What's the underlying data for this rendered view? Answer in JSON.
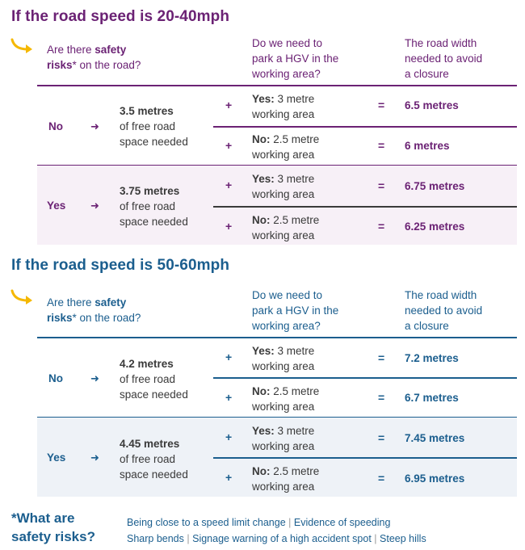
{
  "colors": {
    "purple": "#6b2274",
    "blue": "#1b5e8e",
    "yellow_arrow": "#f5b800",
    "purple_shade": "#f7f0f7",
    "blue_shade": "#eef2f7"
  },
  "section1": {
    "title": "If the road speed is 20-40mph",
    "header": {
      "q1_a": "Are there ",
      "q1_b": "safety",
      "q1_c": "risks",
      "q1_d": "* on the road?",
      "q2_l1": "Do we need to",
      "q2_l2": "park a HGV in the",
      "q2_l3": "working area?",
      "q3_l1": "The road width",
      "q3_l2": "needed to avoid",
      "q3_l3": "a closure"
    },
    "groups": [
      {
        "answer": "No",
        "arrow": "➜",
        "space_bold": "3.5 metres",
        "space_l2": "of free road",
        "space_l3": "space needed",
        "rows": [
          {
            "plus": "+",
            "hgv_bold": "Yes:",
            "hgv_rest": " 3 metre",
            "hgv_l2": "working area",
            "eq": "=",
            "result": "6.5 metres"
          },
          {
            "plus": "+",
            "hgv_bold": "No:",
            "hgv_rest": " 2.5 metre",
            "hgv_l2": "working area",
            "eq": "=",
            "result": "6 metres"
          }
        ]
      },
      {
        "answer": "Yes",
        "arrow": "➜",
        "space_bold": "3.75 metres",
        "space_l2": "of free road",
        "space_l3": "space needed",
        "rows": [
          {
            "plus": "+",
            "hgv_bold": "Yes:",
            "hgv_rest": " 3 metre",
            "hgv_l2": "working area",
            "eq": "=",
            "result": "6.75 metres"
          },
          {
            "plus": "+",
            "hgv_bold": "No:",
            "hgv_rest": " 2.5 metre",
            "hgv_l2": "working area",
            "eq": "=",
            "result": "6.25 metres"
          }
        ]
      }
    ]
  },
  "section2": {
    "title": "If the road speed is 50-60mph",
    "header": {
      "q1_a": "Are there ",
      "q1_b": "safety",
      "q1_c": "risks",
      "q1_d": "* on the road?",
      "q2_l1": "Do we need to",
      "q2_l2": "park a HGV in the",
      "q2_l3": "working area?",
      "q3_l1": "The road width",
      "q3_l2": "needed to avoid",
      "q3_l3": "a closure"
    },
    "groups": [
      {
        "answer": "No",
        "arrow": "➜",
        "space_bold": "4.2 metres",
        "space_l2": "of free road",
        "space_l3": "space needed",
        "rows": [
          {
            "plus": "+",
            "hgv_bold": "Yes:",
            "hgv_rest": " 3 metre",
            "hgv_l2": "working area",
            "eq": "=",
            "result": "7.2 metres"
          },
          {
            "plus": "+",
            "hgv_bold": "No:",
            "hgv_rest": " 2.5 metre",
            "hgv_l2": "working area",
            "eq": "=",
            "result": "6.7 metres"
          }
        ]
      },
      {
        "answer": "Yes",
        "arrow": "➜",
        "space_bold": "4.45 metres",
        "space_l2": "of free road",
        "space_l3": "space needed",
        "rows": [
          {
            "plus": "+",
            "hgv_bold": "Yes:",
            "hgv_rest": " 3 metre",
            "hgv_l2": "working area",
            "eq": "=",
            "result": "7.45 metres"
          },
          {
            "plus": "+",
            "hgv_bold": "No:",
            "hgv_rest": " 2.5 metre",
            "hgv_l2": "working area",
            "eq": "=",
            "result": "6.95 metres"
          }
        ]
      }
    ]
  },
  "footer": {
    "title_l1": "*What are",
    "title_l2": "safety risks?",
    "risk1": "Being close to a speed limit change",
    "risk2": "Evidence of speeding",
    "risk3": "Sharp bends",
    "risk4": "Signage warning of a high accident spot",
    "risk5": "Steep hills",
    "separator": "|"
  }
}
